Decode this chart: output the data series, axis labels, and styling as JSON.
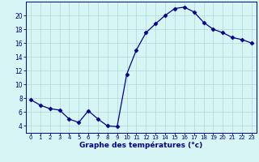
{
  "x": [
    0,
    1,
    2,
    3,
    4,
    5,
    6,
    7,
    8,
    9,
    10,
    11,
    12,
    13,
    14,
    15,
    16,
    17,
    18,
    19,
    20,
    21,
    22,
    23
  ],
  "y": [
    7.8,
    7.0,
    6.5,
    6.3,
    5.0,
    4.5,
    6.2,
    5.0,
    4.0,
    3.9,
    11.5,
    15.0,
    17.5,
    18.8,
    20.0,
    21.0,
    21.2,
    20.5,
    19.0,
    18.0,
    17.5,
    16.8,
    16.5,
    16.0
  ],
  "line_color": "#00008B",
  "marker": "D",
  "markersize": 2.5,
  "background_color": "#d8f5f5",
  "grid_color": "#b0d8d8",
  "xlabel": "Graphe des températures (°c)",
  "tick_color": "#00008B",
  "xlim": [
    -0.5,
    23.5
  ],
  "ylim": [
    3.0,
    22.0
  ],
  "yticks": [
    4,
    6,
    8,
    10,
    12,
    14,
    16,
    18,
    20
  ],
  "xticks": [
    0,
    1,
    2,
    3,
    4,
    5,
    6,
    7,
    8,
    9,
    10,
    11,
    12,
    13,
    14,
    15,
    16,
    17,
    18,
    19,
    20,
    21,
    22,
    23
  ]
}
